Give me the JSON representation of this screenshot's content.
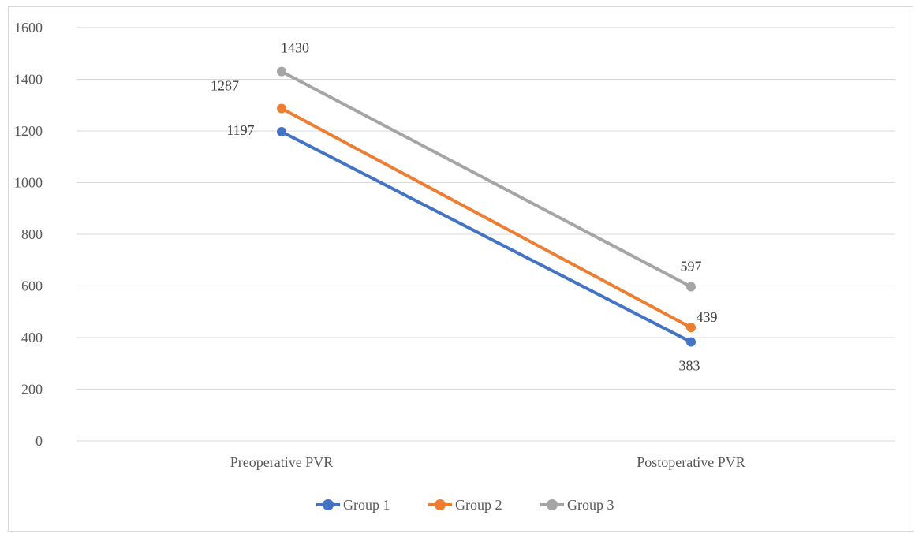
{
  "chart_data": {
    "type": "line",
    "title": "",
    "xlabel": "",
    "ylabel": "",
    "categories": [
      "Preoperative PVR",
      "Postoperative PVR"
    ],
    "ylim": [
      0,
      1600
    ],
    "yticks": [
      0,
      200,
      400,
      600,
      800,
      1000,
      1200,
      1400,
      1600
    ],
    "grid": true,
    "legend": "bottom",
    "series": [
      {
        "name": "Group 1",
        "values": [
          1197,
          383
        ],
        "color": "#4472c4"
      },
      {
        "name": "Group 2",
        "values": [
          1287,
          439
        ],
        "color": "#ed7d31"
      },
      {
        "name": "Group 3",
        "values": [
          1430,
          597
        ],
        "color": "#a5a5a5"
      }
    ]
  }
}
